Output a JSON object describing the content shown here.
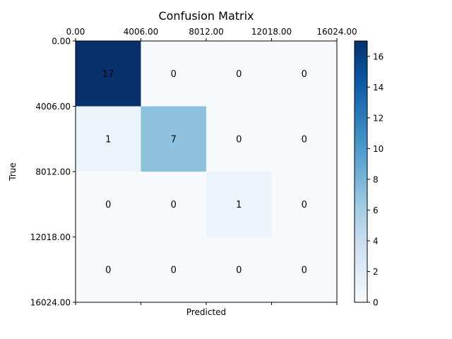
{
  "chart_data": {
    "type": "heatmap",
    "title": "Confusion Matrix",
    "xlabel": "Predicted",
    "ylabel": "True",
    "x_tick_labels": [
      "0.00",
      "4006.00",
      "8012.00",
      "12018.00",
      "16024.00"
    ],
    "y_tick_labels": [
      "0.00",
      "4006.00",
      "8012.00",
      "12018.00",
      "16024.00"
    ],
    "matrix": [
      [
        17,
        0,
        0,
        0
      ],
      [
        1,
        7,
        0,
        0
      ],
      [
        0,
        0,
        1,
        0
      ],
      [
        0,
        0,
        0,
        0
      ]
    ],
    "colormap": "Blues",
    "vmin": 0,
    "vmax": 17,
    "colorbar_ticks": [
      "0",
      "2",
      "4",
      "6",
      "8",
      "10",
      "12",
      "14",
      "16"
    ],
    "colors": {
      "low": "#f7fbff",
      "high": "#08306b",
      "text_dark": "#08306b",
      "text_light": "#ffffff"
    }
  }
}
